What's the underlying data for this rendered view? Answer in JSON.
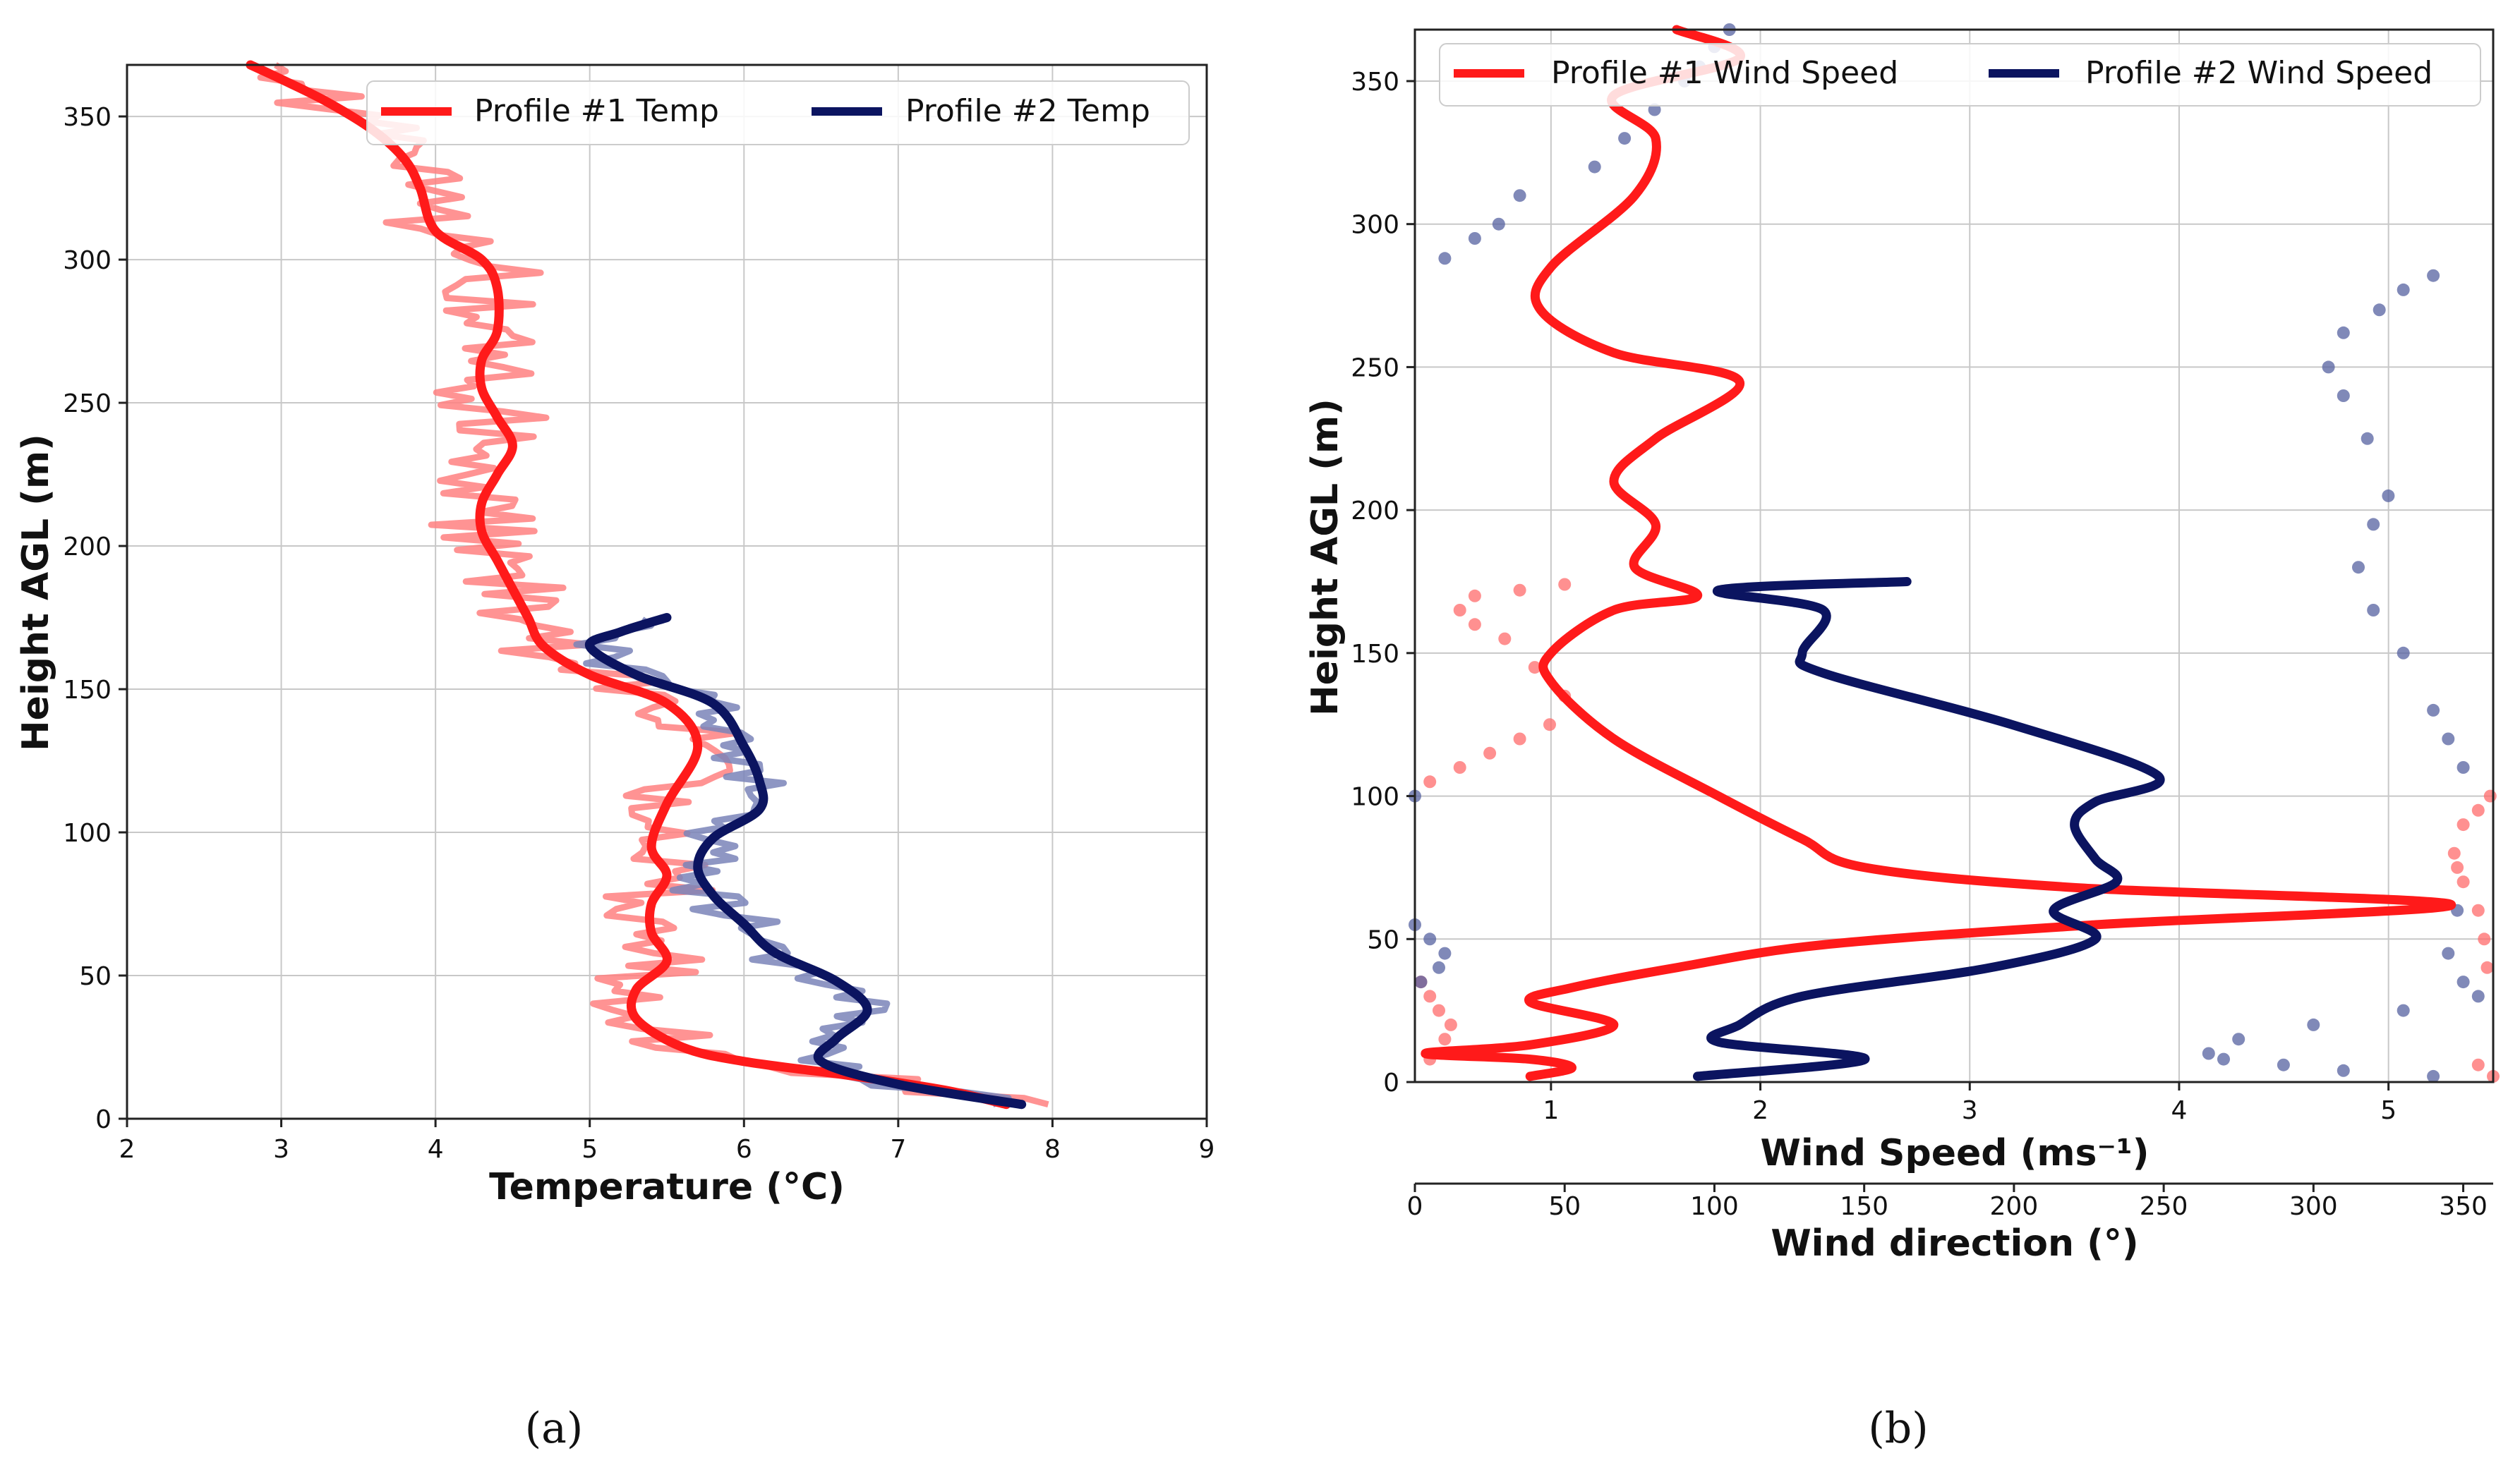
{
  "chart_data": [
    {
      "type": "line",
      "panel_caption": "(a)",
      "xlabel": "Temperature (°C)",
      "ylabel": "Height AGL (m)",
      "xlim": [
        2,
        9
      ],
      "ylim": [
        0,
        368
      ],
      "xticks": [
        "2",
        "3",
        "4",
        "5",
        "6",
        "7",
        "8",
        "9"
      ],
      "yticks": [
        "0",
        "50",
        "100",
        "150",
        "200",
        "250",
        "300",
        "350"
      ],
      "grid": true,
      "legend": {
        "placement": "top-right",
        "entries": [
          "Profile #1 Temp",
          "Profile #2 Temp"
        ]
      },
      "series": [
        {
          "name": "Profile #1 Temp",
          "color": "#ff1a1a",
          "raw_color": "#ff8080",
          "x": [
            7.7,
            7.3,
            6.7,
            6.0,
            5.6,
            5.3,
            5.3,
            5.5,
            5.4,
            5.4,
            5.5,
            5.4,
            5.5,
            5.7,
            5.5,
            5.0,
            4.7,
            4.6,
            4.5,
            4.4,
            4.3,
            4.3,
            4.4,
            4.5,
            4.4,
            4.3,
            4.3,
            4.4,
            4.4,
            4.3,
            4.0,
            3.9,
            3.8,
            3.6,
            3.3,
            3.0,
            2.8
          ],
          "y": [
            5,
            10,
            15,
            20,
            25,
            35,
            45,
            55,
            65,
            75,
            85,
            95,
            110,
            130,
            145,
            155,
            165,
            175,
            185,
            195,
            205,
            215,
            225,
            235,
            245,
            255,
            265,
            275,
            290,
            300,
            310,
            325,
            335,
            345,
            355,
            363,
            368
          ],
          "noise_amplitude": 0.35
        },
        {
          "name": "Profile #2 Temp",
          "color": "#0b1460",
          "raw_color": "#7a84b8",
          "x": [
            7.8,
            7.0,
            6.5,
            6.6,
            6.8,
            6.6,
            6.2,
            6.0,
            5.8,
            5.7,
            5.8,
            6.1,
            6.1,
            6.0,
            5.8,
            5.3,
            5.0,
            5.2,
            5.5
          ],
          "y": [
            5,
            12,
            20,
            28,
            38,
            48,
            58,
            68,
            78,
            88,
            98,
            108,
            118,
            130,
            145,
            155,
            165,
            170,
            175
          ],
          "noise_amplitude": 0.25
        }
      ]
    },
    {
      "type": "line",
      "panel_caption": "(b)",
      "xlabel": "Wind Speed (ms⁻¹)",
      "x2label": "Wind direction (°)",
      "ylabel": "Height AGL (m)",
      "xlim": [
        0.35,
        5.5
      ],
      "x2lim": [
        0,
        360
      ],
      "ylim": [
        0,
        368
      ],
      "xticks": [
        "1",
        "2",
        "3",
        "4",
        "5"
      ],
      "x2ticks": [
        "0",
        "50",
        "100",
        "150",
        "200",
        "250",
        "300",
        "350"
      ],
      "yticks": [
        "0",
        "50",
        "100",
        "150",
        "200",
        "250",
        "300",
        "350"
      ],
      "grid": true,
      "legend": {
        "placement": "top",
        "entries": [
          "Profile #1 Wind Speed",
          "Profile #2 Wind Speed"
        ]
      },
      "series": [
        {
          "name": "Profile #1 Wind Speed",
          "color": "#ff1a1a",
          "x": [
            0.9,
            1.1,
            0.9,
            0.4,
            0.9,
            1.3,
            0.9,
            1.1,
            1.6,
            2.3,
            3.6,
            5.3,
            3.5,
            2.5,
            2.2,
            1.8,
            1.3,
            1.0,
            1.0,
            1.3,
            1.7,
            1.4,
            1.5,
            1.3,
            1.5,
            1.9,
            1.3,
            0.95,
            1.0,
            1.4,
            1.5,
            1.3,
            1.9,
            1.6
          ],
          "y": [
            2,
            5,
            8,
            10,
            13,
            20,
            28,
            33,
            40,
            48,
            55,
            62,
            68,
            75,
            85,
            100,
            120,
            140,
            150,
            165,
            170,
            180,
            195,
            210,
            225,
            245,
            255,
            270,
            285,
            310,
            330,
            345,
            358,
            368
          ]
        },
        {
          "name": "Profile #2 Wind Speed",
          "color": "#0b1460",
          "x": [
            1.7,
            2.5,
            1.8,
            1.9,
            2.2,
            3.1,
            3.6,
            3.4,
            3.7,
            3.6,
            3.5,
            3.6,
            3.9,
            3.2,
            2.3,
            2.2,
            2.3,
            1.8,
            2.7
          ],
          "y": [
            2,
            8,
            14,
            20,
            30,
            40,
            50,
            60,
            70,
            78,
            90,
            98,
            107,
            125,
            143,
            150,
            165,
            172,
            175
          ]
        },
        {
          "name": "Profile #1 Wind direction",
          "color": "#ff6b6b",
          "style": "dots",
          "axis": "x2",
          "x": [
            360,
            355,
            5,
            10,
            12,
            8,
            5,
            2,
            358,
            357,
            355,
            350,
            348,
            347,
            350,
            355,
            359,
            5,
            15,
            25,
            35,
            45,
            50,
            40,
            30,
            20,
            15,
            20,
            35,
            50
          ],
          "y": [
            2,
            6,
            8,
            15,
            20,
            25,
            30,
            35,
            40,
            50,
            60,
            70,
            75,
            80,
            90,
            95,
            100,
            105,
            110,
            115,
            120,
            125,
            135,
            145,
            155,
            160,
            165,
            170,
            172,
            174
          ]
        },
        {
          "name": "Profile #2 Wind direction",
          "color": "#5561a0",
          "style": "dots",
          "axis": "x2",
          "x": [
            340,
            310,
            290,
            270,
            265,
            275,
            300,
            330,
            355,
            350,
            345,
            348,
            0,
            5,
            10,
            8,
            2,
            0,
            350,
            345,
            340,
            330,
            320,
            315,
            320,
            325,
            318,
            310,
            305,
            310,
            322,
            330,
            340,
            10,
            20,
            28,
            35,
            60,
            70,
            80,
            90,
            95,
            100,
            105
          ],
          "y": [
            2,
            4,
            6,
            8,
            10,
            15,
            20,
            25,
            30,
            35,
            45,
            60,
            55,
            50,
            45,
            40,
            35,
            100,
            110,
            120,
            130,
            150,
            165,
            180,
            195,
            205,
            225,
            240,
            250,
            262,
            270,
            277,
            282,
            288,
            295,
            300,
            310,
            320,
            330,
            340,
            350,
            355,
            362,
            368
          ]
        }
      ]
    }
  ]
}
